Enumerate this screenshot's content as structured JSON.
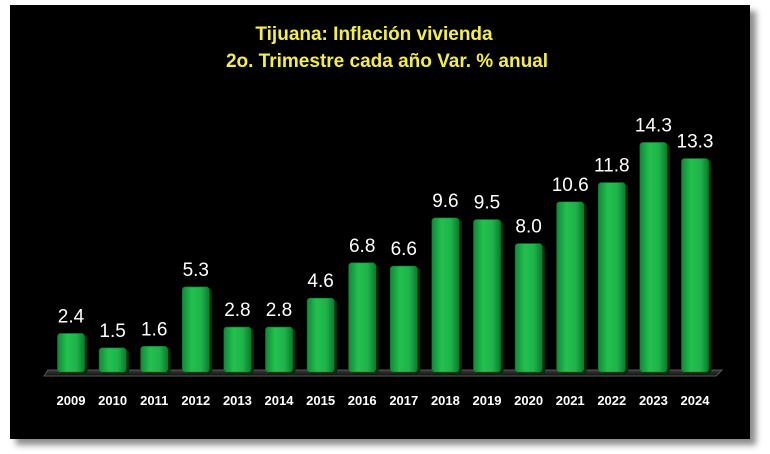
{
  "chart_data": {
    "type": "bar",
    "title": "Tijuana: Inflación vivienda",
    "subtitle": "2o. Trimestre cada año Var. % anual",
    "categories": [
      "2009",
      "2010",
      "2011",
      "2012",
      "2013",
      "2014",
      "2015",
      "2016",
      "2017",
      "2018",
      "2019",
      "2020",
      "2021",
      "2022",
      "2023",
      "2024"
    ],
    "values": [
      2.4,
      1.5,
      1.6,
      5.3,
      2.8,
      2.8,
      4.6,
      6.8,
      6.6,
      9.6,
      9.5,
      8.0,
      10.6,
      11.8,
      14.3,
      13.3
    ],
    "value_labels": [
      "2.4",
      "1.5",
      "1.6",
      "5.3",
      "2.8",
      "2.8",
      "4.6",
      "6.8",
      "6.6",
      "9.6",
      "9.5",
      "8.0",
      "10.6",
      "11.8",
      "14.3",
      "13.3"
    ],
    "xlabel": "",
    "ylabel": "",
    "ylim": [
      0,
      16
    ],
    "grid": false,
    "legend": "none",
    "colors": {
      "background": "#000000",
      "bar": "#1fb34a",
      "bar_dark": "#0c7a2e",
      "title": "#f2ee4a",
      "text": "#ffffff"
    }
  }
}
